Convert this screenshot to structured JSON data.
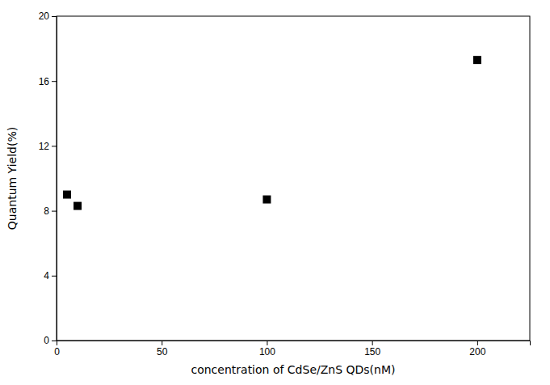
{
  "chart_data": {
    "type": "scatter",
    "x": [
      5,
      10,
      100,
      200
    ],
    "values": [
      9.0,
      8.3,
      8.7,
      17.3
    ],
    "color": "black",
    "marker": "square",
    "xlabel": "concentration of CdSe/ZnS QDs(nM)",
    "ylabel": "Quantum Yield(%)",
    "xlim": [
      0,
      225
    ],
    "ylim": [
      0,
      20
    ],
    "xticks": [
      0,
      50,
      100,
      150,
      200
    ],
    "yticks": [
      0,
      4,
      8,
      12,
      16,
      20
    ],
    "grid": false
  }
}
